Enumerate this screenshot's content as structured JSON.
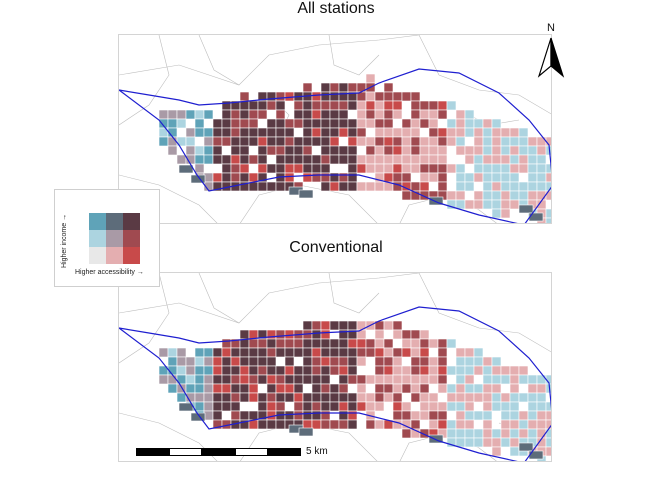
{
  "panels": [
    {
      "title": "All stations"
    },
    {
      "title": "Conventional"
    }
  ],
  "legend": {
    "y_label": "Higher income →",
    "x_label": "Higher accessibility →",
    "colors": [
      [
        "#5fa3b8",
        "#5d6c7a",
        "#5a3a44"
      ],
      [
        "#acd4e0",
        "#a99aa6",
        "#a04a50"
      ],
      [
        "#e8e8e8",
        "#e4aeb0",
        "#c84a4a"
      ]
    ]
  },
  "north_arrow": {
    "label": "N"
  },
  "scale_bar": {
    "label": "5 km"
  }
}
